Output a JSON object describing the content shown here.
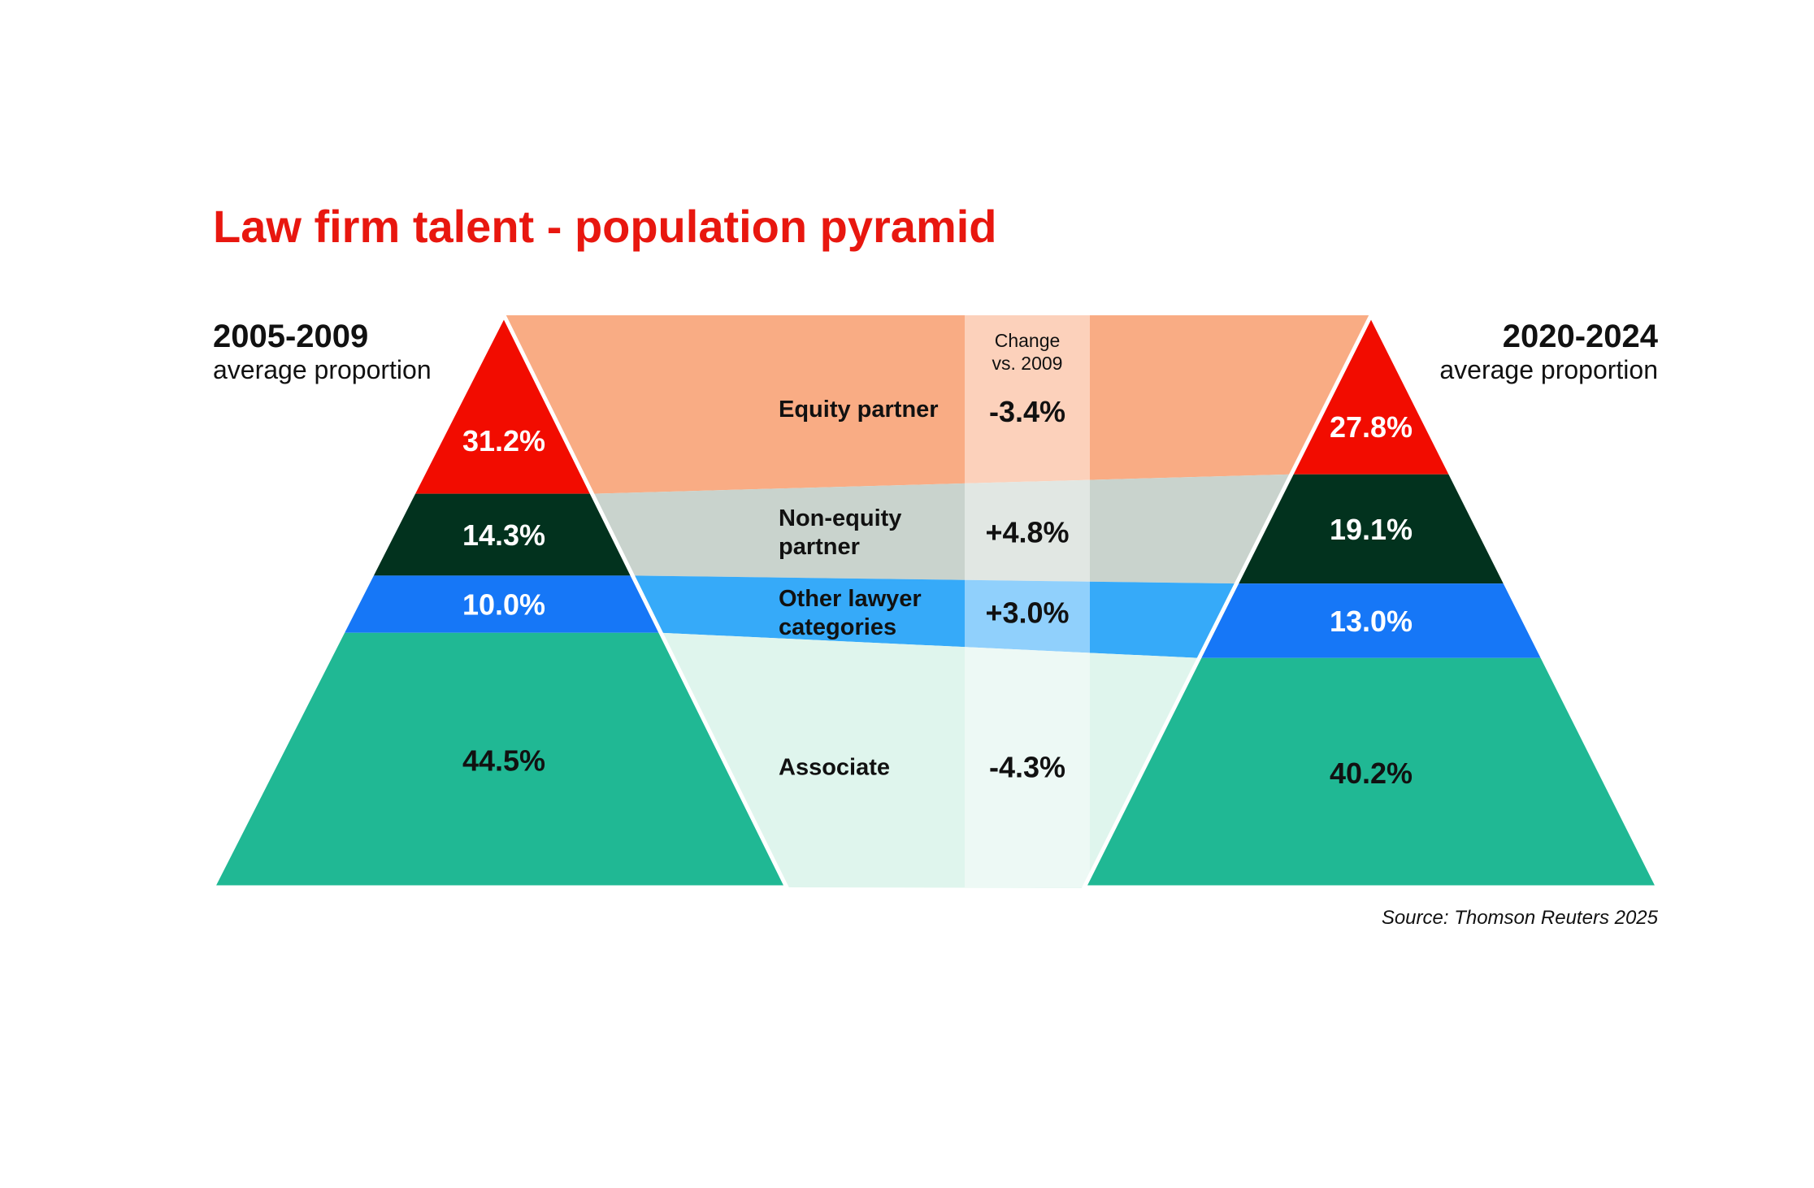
{
  "colors": {
    "title": "#e8170f",
    "equity_partner": "#f20c00",
    "non_equity_partner": "#02321e",
    "other_lawyer": "#1677f7",
    "associate": "#20b894",
    "band_equity": "#f9ac84",
    "band_non_equity": "#c9d3cd",
    "band_other": "#36aaf9",
    "band_associate": "#dff5ed"
  },
  "chart_data": {
    "type": "population-pyramid",
    "title": "Law firm talent - population pyramid",
    "left_period": {
      "label": "2005-2009",
      "sublabel": "average proportion"
    },
    "right_period": {
      "label": "2020-2024",
      "sublabel": "average proportion"
    },
    "change_header": [
      "Change",
      "vs. 2009"
    ],
    "categories": [
      {
        "key": "equity_partner",
        "label": [
          "Equity partner"
        ],
        "left": 31.2,
        "right": 27.8,
        "left_text": "31.2%",
        "right_text": "27.8%",
        "change": -3.4,
        "change_text": "-3.4%"
      },
      {
        "key": "non_equity_partner",
        "label": [
          "Non-equity",
          "partner"
        ],
        "left": 14.3,
        "right": 19.1,
        "left_text": "14.3%",
        "right_text": "19.1%",
        "change": 4.8,
        "change_text": "+4.8%"
      },
      {
        "key": "other_lawyer",
        "label": [
          "Other lawyer",
          "categories"
        ],
        "left": 10.0,
        "right": 13.0,
        "left_text": "10.0%",
        "right_text": "13.0%",
        "change": 3.0,
        "change_text": "+3.0%"
      },
      {
        "key": "associate",
        "label": [
          "Associate"
        ],
        "left": 44.5,
        "right": 40.2,
        "left_text": "44.5%",
        "right_text": "40.2%",
        "change": -4.3,
        "change_text": "-4.3%"
      }
    ],
    "source": "Source: Thomson Reuters 2025"
  }
}
